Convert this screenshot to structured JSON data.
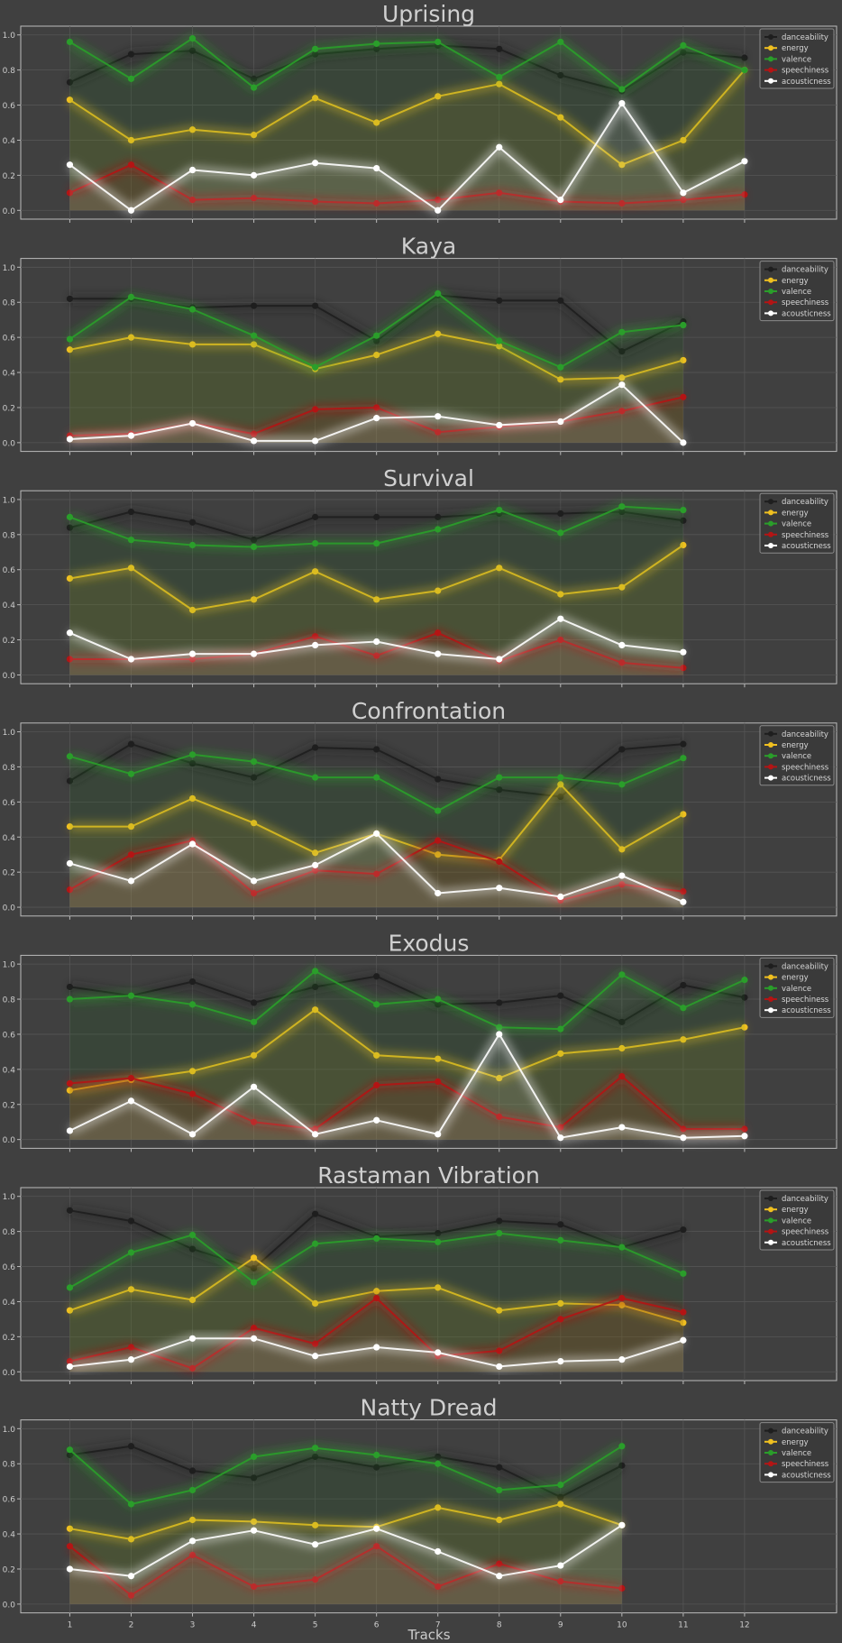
{
  "figure": {
    "xlabel": "Tracks",
    "background": "#404040"
  },
  "series_colors": {
    "danceability": "#1e1e1e",
    "energy": "#f0c020",
    "valence": "#2a9e2a",
    "speechiness": "#b41414",
    "acousticness": "#ffffff"
  },
  "chart_data": [
    {
      "type": "line",
      "title": "Uprising",
      "x": [
        1,
        2,
        3,
        4,
        5,
        6,
        7,
        8,
        9,
        10,
        11,
        12
      ],
      "ylim": [
        -0.05,
        1.05
      ],
      "yticks": [
        "0.0",
        "0.2",
        "0.4",
        "0.6",
        "0.8",
        "1.0"
      ],
      "legend": "top-right",
      "grid": true,
      "series": [
        {
          "name": "danceability",
          "values": [
            0.73,
            0.89,
            0.91,
            0.75,
            0.89,
            0.92,
            0.94,
            0.92,
            0.77,
            0.68,
            0.9,
            0.87
          ]
        },
        {
          "name": "energy",
          "values": [
            0.63,
            0.4,
            0.46,
            0.43,
            0.64,
            0.5,
            0.65,
            0.72,
            0.53,
            0.26,
            0.4,
            0.8
          ]
        },
        {
          "name": "valence",
          "values": [
            0.96,
            0.75,
            0.98,
            0.7,
            0.92,
            0.95,
            0.96,
            0.76,
            0.96,
            0.69,
            0.94,
            0.8
          ]
        },
        {
          "name": "speechiness",
          "values": [
            0.1,
            0.26,
            0.06,
            0.07,
            0.05,
            0.04,
            0.06,
            0.1,
            0.05,
            0.04,
            0.06,
            0.09
          ]
        },
        {
          "name": "acousticness",
          "values": [
            0.26,
            0.0,
            0.23,
            0.2,
            0.27,
            0.24,
            0.0,
            0.36,
            0.06,
            0.61,
            0.1,
            0.28
          ]
        }
      ]
    },
    {
      "type": "line",
      "title": "Kaya",
      "x": [
        1,
        2,
        3,
        4,
        5,
        6,
        7,
        8,
        9,
        10,
        11
      ],
      "ylim": [
        -0.05,
        1.05
      ],
      "yticks": [
        "0.0",
        "0.2",
        "0.4",
        "0.6",
        "0.8",
        "1.0"
      ],
      "legend": "top-right",
      "grid": true,
      "series": [
        {
          "name": "danceability",
          "values": [
            0.82,
            0.82,
            0.77,
            0.78,
            0.78,
            0.58,
            0.84,
            0.81,
            0.81,
            0.52,
            0.69
          ]
        },
        {
          "name": "energy",
          "values": [
            0.53,
            0.6,
            0.56,
            0.56,
            0.42,
            0.5,
            0.62,
            0.55,
            0.36,
            0.37,
            0.47
          ]
        },
        {
          "name": "valence",
          "values": [
            0.59,
            0.83,
            0.76,
            0.61,
            0.43,
            0.61,
            0.85,
            0.58,
            0.43,
            0.63,
            0.67
          ]
        },
        {
          "name": "speechiness",
          "values": [
            0.04,
            0.05,
            0.11,
            0.05,
            0.19,
            0.2,
            0.06,
            0.09,
            0.12,
            0.18,
            0.26
          ]
        },
        {
          "name": "acousticness",
          "values": [
            0.02,
            0.04,
            0.11,
            0.01,
            0.01,
            0.14,
            0.15,
            0.1,
            0.12,
            0.33,
            0.0
          ]
        }
      ]
    },
    {
      "type": "line",
      "title": "Survival",
      "x": [
        1,
        2,
        3,
        4,
        5,
        6,
        7,
        8,
        9,
        10,
        11
      ],
      "ylim": [
        -0.05,
        1.05
      ],
      "yticks": [
        "0.0",
        "0.2",
        "0.4",
        "0.6",
        "0.8",
        "1.0"
      ],
      "legend": "top-right",
      "grid": true,
      "series": [
        {
          "name": "danceability",
          "values": [
            0.84,
            0.93,
            0.87,
            0.77,
            0.9,
            0.9,
            0.9,
            0.92,
            0.92,
            0.93,
            0.88
          ]
        },
        {
          "name": "energy",
          "values": [
            0.55,
            0.61,
            0.37,
            0.43,
            0.59,
            0.43,
            0.48,
            0.61,
            0.46,
            0.5,
            0.74
          ]
        },
        {
          "name": "valence",
          "values": [
            0.9,
            0.77,
            0.74,
            0.73,
            0.75,
            0.75,
            0.83,
            0.94,
            0.81,
            0.96,
            0.94
          ]
        },
        {
          "name": "speechiness",
          "values": [
            0.09,
            0.09,
            0.09,
            0.12,
            0.22,
            0.11,
            0.24,
            0.08,
            0.2,
            0.07,
            0.04
          ]
        },
        {
          "name": "acousticness",
          "values": [
            0.24,
            0.09,
            0.12,
            0.12,
            0.17,
            0.19,
            0.12,
            0.09,
            0.32,
            0.17,
            0.13
          ]
        }
      ]
    },
    {
      "type": "line",
      "title": "Confrontation",
      "x": [
        1,
        2,
        3,
        4,
        5,
        6,
        7,
        8,
        9,
        10,
        11
      ],
      "ylim": [
        -0.05,
        1.05
      ],
      "yticks": [
        "0.0",
        "0.2",
        "0.4",
        "0.6",
        "0.8",
        "1.0"
      ],
      "legend": "top-right",
      "grid": true,
      "series": [
        {
          "name": "danceability",
          "values": [
            0.72,
            0.93,
            0.82,
            0.74,
            0.91,
            0.9,
            0.73,
            0.67,
            0.63,
            0.9,
            0.93
          ]
        },
        {
          "name": "energy",
          "values": [
            0.46,
            0.46,
            0.62,
            0.48,
            0.31,
            0.42,
            0.3,
            0.27,
            0.7,
            0.33,
            0.53
          ]
        },
        {
          "name": "valence",
          "values": [
            0.86,
            0.76,
            0.87,
            0.83,
            0.74,
            0.74,
            0.55,
            0.74,
            0.74,
            0.7,
            0.85
          ]
        },
        {
          "name": "speechiness",
          "values": [
            0.1,
            0.3,
            0.38,
            0.08,
            0.21,
            0.19,
            0.38,
            0.26,
            0.04,
            0.13,
            0.09
          ]
        },
        {
          "name": "acousticness",
          "values": [
            0.25,
            0.15,
            0.36,
            0.15,
            0.24,
            0.42,
            0.08,
            0.11,
            0.06,
            0.18,
            0.03
          ]
        }
      ]
    },
    {
      "type": "line",
      "title": "Exodus",
      "x": [
        1,
        2,
        3,
        4,
        5,
        6,
        7,
        8,
        9,
        10,
        11,
        12
      ],
      "ylim": [
        -0.05,
        1.05
      ],
      "yticks": [
        "0.0",
        "0.2",
        "0.4",
        "0.6",
        "0.8",
        "1.0"
      ],
      "legend": "top-right",
      "grid": true,
      "series": [
        {
          "name": "danceability",
          "values": [
            0.87,
            0.82,
            0.9,
            0.78,
            0.87,
            0.93,
            0.77,
            0.78,
            0.82,
            0.67,
            0.88,
            0.81
          ]
        },
        {
          "name": "energy",
          "values": [
            0.28,
            0.34,
            0.39,
            0.48,
            0.74,
            0.48,
            0.46,
            0.35,
            0.49,
            0.52,
            0.57,
            0.64
          ]
        },
        {
          "name": "valence",
          "values": [
            0.8,
            0.82,
            0.77,
            0.67,
            0.96,
            0.77,
            0.8,
            0.64,
            0.63,
            0.94,
            0.75,
            0.91
          ]
        },
        {
          "name": "speechiness",
          "values": [
            0.32,
            0.35,
            0.26,
            0.1,
            0.06,
            0.31,
            0.33,
            0.13,
            0.07,
            0.36,
            0.06,
            0.06
          ]
        },
        {
          "name": "acousticness",
          "values": [
            0.05,
            0.22,
            0.03,
            0.3,
            0.03,
            0.11,
            0.03,
            0.6,
            0.01,
            0.07,
            0.01,
            0.02
          ]
        }
      ]
    },
    {
      "type": "line",
      "title": "Rastaman Vibration",
      "x": [
        1,
        2,
        3,
        4,
        5,
        6,
        7,
        8,
        9,
        10,
        11
      ],
      "ylim": [
        -0.05,
        1.05
      ],
      "yticks": [
        "0.0",
        "0.2",
        "0.4",
        "0.6",
        "0.8",
        "1.0"
      ],
      "legend": "top-right",
      "grid": true,
      "series": [
        {
          "name": "danceability",
          "values": [
            0.92,
            0.86,
            0.7,
            0.59,
            0.9,
            0.77,
            0.79,
            0.86,
            0.84,
            0.71,
            0.81
          ]
        },
        {
          "name": "energy",
          "values": [
            0.35,
            0.47,
            0.41,
            0.65,
            0.39,
            0.46,
            0.48,
            0.35,
            0.39,
            0.38,
            0.28
          ]
        },
        {
          "name": "valence",
          "values": [
            0.48,
            0.68,
            0.78,
            0.51,
            0.73,
            0.76,
            0.74,
            0.79,
            0.75,
            0.71,
            0.56
          ]
        },
        {
          "name": "speechiness",
          "values": [
            0.06,
            0.14,
            0.02,
            0.25,
            0.16,
            0.42,
            0.09,
            0.12,
            0.3,
            0.42,
            0.34
          ]
        },
        {
          "name": "acousticness",
          "values": [
            0.03,
            0.07,
            0.19,
            0.19,
            0.09,
            0.14,
            0.11,
            0.03,
            0.06,
            0.07,
            0.18
          ]
        }
      ]
    },
    {
      "type": "line",
      "title": "Natty Dread",
      "x": [
        1,
        2,
        3,
        4,
        5,
        6,
        7,
        8,
        9,
        10
      ],
      "ylim": [
        -0.05,
        1.05
      ],
      "yticks": [
        "0.0",
        "0.2",
        "0.4",
        "0.6",
        "0.8",
        "1.0"
      ],
      "legend": "top-right",
      "grid": true,
      "series": [
        {
          "name": "danceability",
          "values": [
            0.85,
            0.9,
            0.76,
            0.72,
            0.84,
            0.78,
            0.84,
            0.78,
            0.61,
            0.79
          ]
        },
        {
          "name": "energy",
          "values": [
            0.43,
            0.37,
            0.48,
            0.47,
            0.45,
            0.44,
            0.55,
            0.48,
            0.57,
            0.45
          ]
        },
        {
          "name": "valence",
          "values": [
            0.88,
            0.57,
            0.65,
            0.84,
            0.89,
            0.85,
            0.8,
            0.65,
            0.68,
            0.9
          ]
        },
        {
          "name": "speechiness",
          "values": [
            0.33,
            0.05,
            0.28,
            0.1,
            0.14,
            0.33,
            0.1,
            0.23,
            0.13,
            0.09
          ]
        },
        {
          "name": "acousticness",
          "values": [
            0.2,
            0.16,
            0.36,
            0.42,
            0.34,
            0.43,
            0.3,
            0.16,
            0.22,
            0.45
          ]
        }
      ]
    }
  ],
  "xaxis": {
    "ticks": [
      "1",
      "2",
      "3",
      "4",
      "5",
      "6",
      "7",
      "8",
      "9",
      "10",
      "11",
      "12"
    ]
  }
}
